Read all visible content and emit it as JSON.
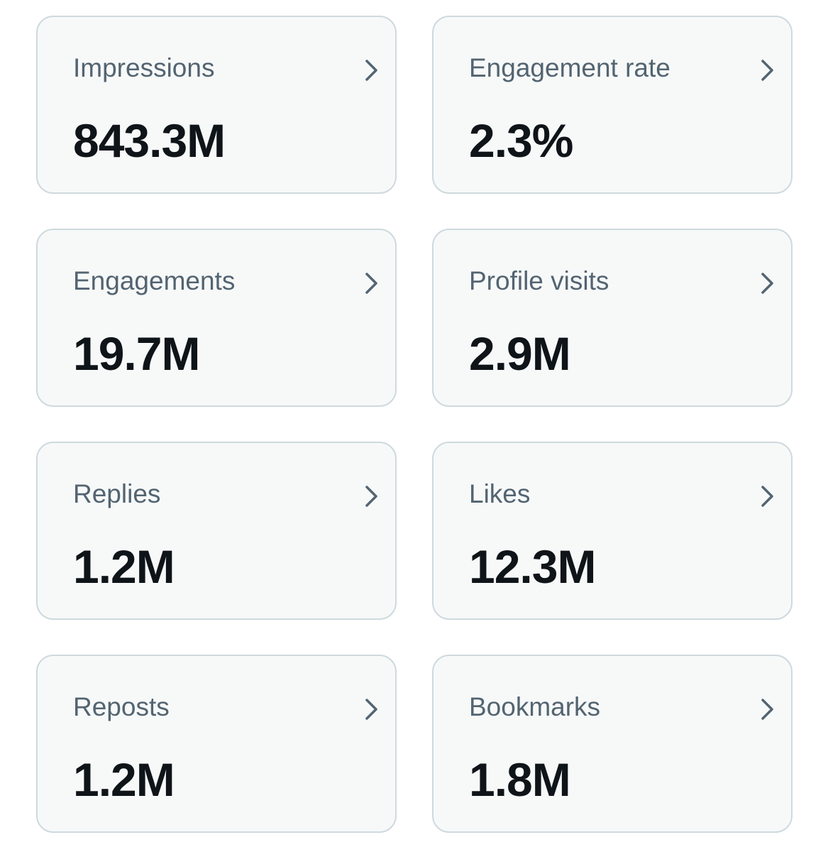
{
  "metrics": [
    {
      "label": "Impressions",
      "value": "843.3M",
      "icon": "chevron-right-icon"
    },
    {
      "label": "Engagement rate",
      "value": "2.3%",
      "icon": "chevron-right-icon"
    },
    {
      "label": "Engagements",
      "value": "19.7M",
      "icon": "chevron-right-icon"
    },
    {
      "label": "Profile visits",
      "value": "2.9M",
      "icon": "chevron-right-icon"
    },
    {
      "label": "Replies",
      "value": "1.2M",
      "icon": "chevron-right-icon"
    },
    {
      "label": "Likes",
      "value": "12.3M",
      "icon": "chevron-right-icon"
    },
    {
      "label": "Reposts",
      "value": "1.2M",
      "icon": "chevron-right-icon"
    },
    {
      "label": "Bookmarks",
      "value": "1.8M",
      "icon": "chevron-right-icon"
    }
  ],
  "colors": {
    "card_background": "#f7f9f9",
    "card_border": "#cfd9de",
    "label_text": "#536471",
    "value_text": "#0f1419",
    "chevron": "#536471"
  }
}
